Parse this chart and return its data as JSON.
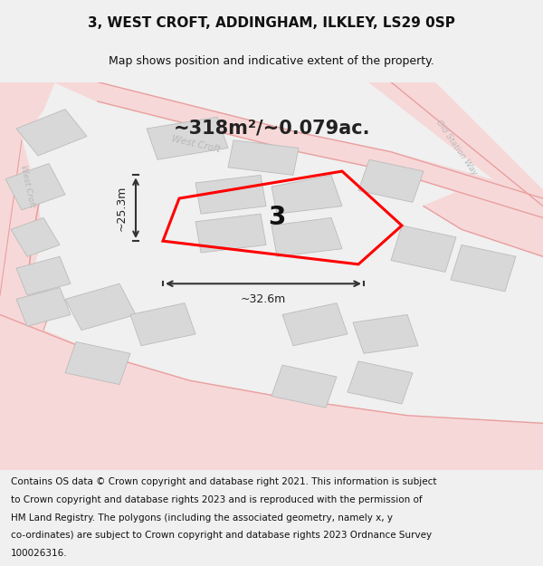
{
  "title": "3, WEST CROFT, ADDINGHAM, ILKLEY, LS29 0SP",
  "subtitle": "Map shows position and indicative extent of the property.",
  "area_text": "~318m²/~0.079ac.",
  "width_label": "~32.6m",
  "height_label": "~25.3m",
  "property_number": "3",
  "footer_lines": [
    "Contains OS data © Crown copyright and database right 2021. This information is subject",
    "to Crown copyright and database rights 2023 and is reproduced with the permission of",
    "HM Land Registry. The polygons (including the associated geometry, namely x, y",
    "co-ordinates) are subject to Crown copyright and database rights 2023 Ordnance Survey",
    "100026316."
  ],
  "bg_color": "#f0f0f0",
  "map_bg": "#ffffff",
  "plot_color": "#ff0000",
  "road_color": "#f7d8d8",
  "building_color": "#d8d8d8",
  "building_edge": "#bbbbbb",
  "road_outline": "#e8a0a0",
  "street_label_color": "#b8b8b8",
  "title_fontsize": 11,
  "subtitle_fontsize": 9,
  "area_fontsize": 15,
  "footer_fontsize": 7.5,
  "property_label_size": 20,
  "dim_label_size": 9
}
